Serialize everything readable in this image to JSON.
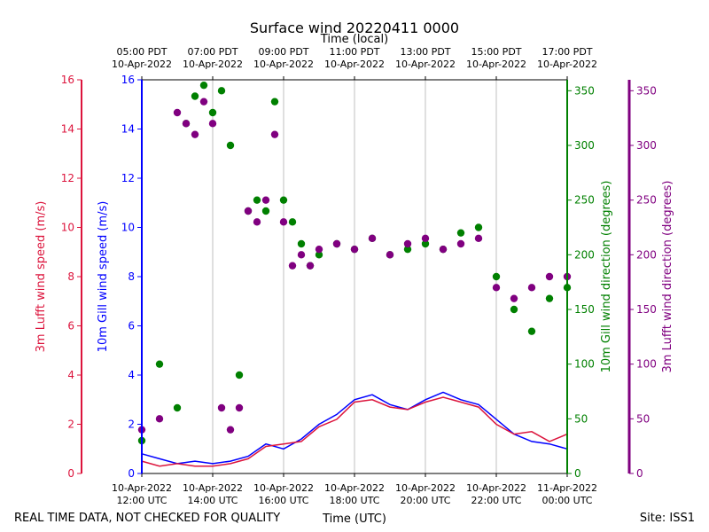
{
  "colors": {
    "lufft_speed": "#dc143c",
    "gill_speed": "#0000ff",
    "gill_dir": "#008000",
    "lufft_dir": "#800080",
    "grid": "#b0b0b0"
  },
  "chart_data": {
    "type": "line",
    "title": "Surface wind 20220411 0000",
    "top_axis_label": "Time (local)",
    "xlabel": "Time (UTC)",
    "footer_left": "REAL TIME DATA, NOT CHECKED FOR QUALITY",
    "footer_right": "Site: ISS1",
    "x_range_hours": [
      12,
      24
    ],
    "x_ticks_utc": [
      {
        "h": 12,
        "line1": "10-Apr-2022",
        "line2": "12:00 UTC"
      },
      {
        "h": 14,
        "line1": "10-Apr-2022",
        "line2": "14:00 UTC"
      },
      {
        "h": 16,
        "line1": "10-Apr-2022",
        "line2": "16:00 UTC"
      },
      {
        "h": 18,
        "line1": "10-Apr-2022",
        "line2": "18:00 UTC"
      },
      {
        "h": 20,
        "line1": "10-Apr-2022",
        "line2": "20:00 UTC"
      },
      {
        "h": 22,
        "line1": "10-Apr-2022",
        "line2": "22:00 UTC"
      },
      {
        "h": 24,
        "line1": "11-Apr-2022",
        "line2": "00:00 UTC"
      }
    ],
    "x_ticks_local": [
      {
        "h": 12,
        "line1": "05:00 PDT",
        "line2": "10-Apr-2022"
      },
      {
        "h": 14,
        "line1": "07:00 PDT",
        "line2": "10-Apr-2022"
      },
      {
        "h": 16,
        "line1": "09:00 PDT",
        "line2": "10-Apr-2022"
      },
      {
        "h": 18,
        "line1": "11:00 PDT",
        "line2": "10-Apr-2022"
      },
      {
        "h": 20,
        "line1": "13:00 PDT",
        "line2": "10-Apr-2022"
      },
      {
        "h": 22,
        "line1": "15:00 PDT",
        "line2": "10-Apr-2022"
      },
      {
        "h": 24,
        "line1": "17:00 PDT",
        "line2": "10-Apr-2022"
      }
    ],
    "axes": {
      "lufft_speed": {
        "label": "3m Lufft wind speed (m/s)",
        "ylim": [
          0,
          16
        ],
        "ticks": [
          "0",
          "2",
          "4",
          "6",
          "8",
          "10",
          "12",
          "14",
          "16"
        ]
      },
      "gill_speed": {
        "label": "10m Gill wind speed (m/s)",
        "ylim": [
          0,
          16
        ],
        "ticks": [
          "0",
          "2",
          "4",
          "6",
          "8",
          "10",
          "12",
          "14",
          "16"
        ]
      },
      "gill_dir": {
        "label": "10m Gill wind direction (degrees)",
        "ylim": [
          0,
          360
        ],
        "ticks": [
          "0",
          "50",
          "100",
          "150",
          "200",
          "250",
          "300",
          "350"
        ]
      },
      "lufft_dir": {
        "label": "3m Lufft wind direction (degrees)",
        "ylim": [
          0,
          360
        ],
        "ticks": [
          "0",
          "50",
          "100",
          "150",
          "200",
          "250",
          "300",
          "350"
        ]
      }
    },
    "series": [
      {
        "name": "10m Gill wind speed",
        "kind": "line",
        "axis": "gill_speed",
        "x": [
          12.0,
          12.5,
          13.0,
          13.5,
          14.0,
          14.5,
          15.0,
          15.5,
          16.0,
          16.5,
          17.0,
          17.5,
          18.0,
          18.5,
          19.0,
          19.5,
          20.0,
          20.5,
          21.0,
          21.5,
          22.0,
          22.5,
          23.0,
          23.5,
          24.0
        ],
        "y": [
          0.8,
          0.6,
          0.4,
          0.5,
          0.4,
          0.5,
          0.7,
          1.2,
          1.0,
          1.4,
          2.0,
          2.4,
          3.0,
          3.2,
          2.8,
          2.6,
          3.0,
          3.3,
          3.0,
          2.8,
          2.2,
          1.6,
          1.3,
          1.2,
          1.0
        ]
      },
      {
        "name": "3m Lufft wind speed",
        "kind": "line",
        "axis": "lufft_speed",
        "x": [
          12.0,
          12.5,
          13.0,
          13.5,
          14.0,
          14.5,
          15.0,
          15.5,
          16.0,
          16.5,
          17.0,
          17.5,
          18.0,
          18.5,
          19.0,
          19.5,
          20.0,
          20.5,
          21.0,
          21.5,
          22.0,
          22.5,
          23.0,
          23.5,
          24.0
        ],
        "y": [
          0.5,
          0.3,
          0.4,
          0.3,
          0.3,
          0.4,
          0.6,
          1.1,
          1.2,
          1.3,
          1.9,
          2.2,
          2.9,
          3.0,
          2.7,
          2.6,
          2.9,
          3.1,
          2.9,
          2.7,
          2.0,
          1.6,
          1.7,
          1.3,
          1.6
        ]
      },
      {
        "name": "10m Gill wind direction",
        "kind": "scatter",
        "axis": "gill_dir",
        "x": [
          12.0,
          12.5,
          13.0,
          13.25,
          13.5,
          13.75,
          14.0,
          14.25,
          14.5,
          14.75,
          15.0,
          15.25,
          15.5,
          15.75,
          16.0,
          16.25,
          16.5,
          16.75,
          17.0,
          17.5,
          18.0,
          18.5,
          19.0,
          19.5,
          20.0,
          20.5,
          21.0,
          21.5,
          22.0,
          22.5,
          23.0,
          23.5,
          24.0
        ],
        "y": [
          30,
          100,
          60,
          320,
          345,
          355,
          330,
          350,
          300,
          90,
          240,
          250,
          240,
          340,
          250,
          230,
          210,
          190,
          200,
          210,
          205,
          215,
          200,
          205,
          210,
          205,
          220,
          225,
          180,
          150,
          130,
          160,
          170
        ]
      },
      {
        "name": "3m Lufft wind direction",
        "kind": "scatter",
        "axis": "lufft_dir",
        "x": [
          12.0,
          12.5,
          13.0,
          13.25,
          13.5,
          13.75,
          14.0,
          14.25,
          14.5,
          14.75,
          15.0,
          15.25,
          15.5,
          15.75,
          16.0,
          16.25,
          16.5,
          16.75,
          17.0,
          17.5,
          18.0,
          18.5,
          19.0,
          19.5,
          20.0,
          20.5,
          21.0,
          21.5,
          22.0,
          22.5,
          23.0,
          23.5,
          24.0
        ],
        "y": [
          40,
          50,
          330,
          320,
          310,
          340,
          320,
          60,
          40,
          60,
          240,
          230,
          250,
          310,
          230,
          190,
          200,
          190,
          205,
          210,
          205,
          215,
          200,
          210,
          215,
          205,
          210,
          215,
          170,
          160,
          170,
          180,
          180
        ]
      }
    ]
  }
}
